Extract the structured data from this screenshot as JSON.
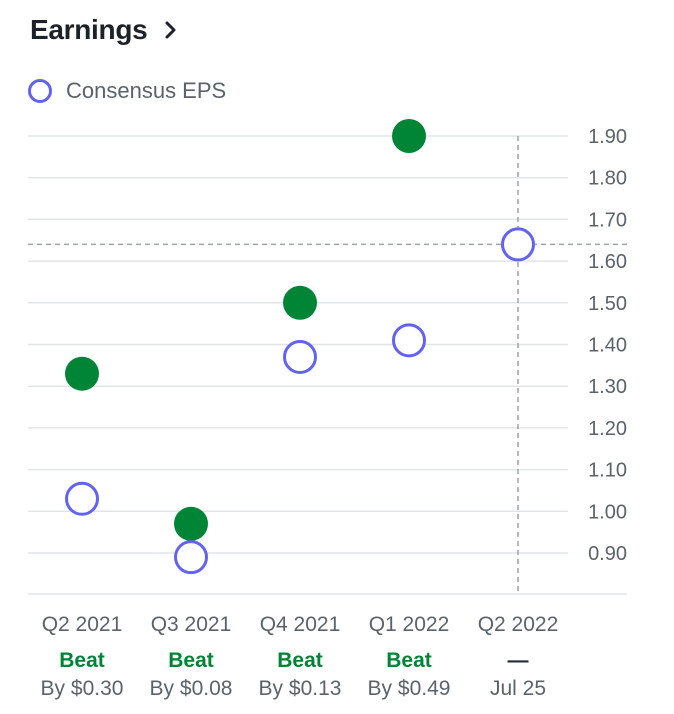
{
  "header": {
    "title": "Earnings"
  },
  "legend": {
    "label": "Consensus EPS"
  },
  "colors": {
    "consensus": "#6263f2",
    "actual": "#008537",
    "grid": "#e2e5e8",
    "tick": "#5b636a",
    "ref": "#9ea4a9"
  },
  "chart_data": {
    "type": "scatter",
    "title": "",
    "categories": [
      "Q2 2021",
      "Q3 2021",
      "Q4 2021",
      "Q1 2022",
      "Q2 2022"
    ],
    "series": [
      {
        "name": "Consensus EPS",
        "values": [
          1.03,
          0.89,
          1.37,
          1.41,
          1.64
        ]
      },
      {
        "values": [
          1.33,
          0.97,
          1.5,
          1.9,
          null
        ]
      }
    ],
    "ylim": [
      0.8,
      1.9
    ],
    "yticks": [
      "1.90",
      "1.80",
      "1.70",
      "1.60",
      "1.50",
      "1.40",
      "1.30",
      "1.20",
      "1.10",
      "1.00",
      "0.90"
    ],
    "yticks_values": [
      1.9,
      1.8,
      1.7,
      1.6,
      1.5,
      1.4,
      1.3,
      1.2,
      1.1,
      1.0,
      0.9
    ],
    "reference": {
      "category_index": 4,
      "value": 1.64
    },
    "grid": true
  },
  "results": [
    {
      "status": "Beat",
      "detail": "By $0.30"
    },
    {
      "status": "Beat",
      "detail": "By $0.08"
    },
    {
      "status": "Beat",
      "detail": "By $0.13"
    },
    {
      "status": "Beat",
      "detail": "By $0.49"
    },
    {
      "status": "—",
      "detail": "Jul 25"
    }
  ]
}
